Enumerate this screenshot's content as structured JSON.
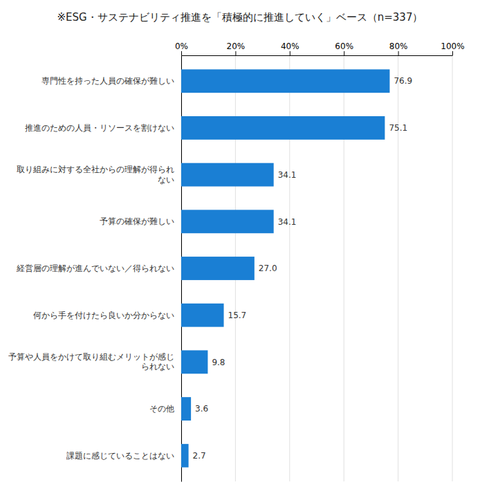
{
  "chart_data": {
    "type": "bar",
    "orientation": "horizontal",
    "title": "※ESG・サステナビリティ推進を「積極的に推進していく」ベース（n=337）",
    "categories": [
      "専門性を持った人員の確保が難しい",
      "推進のための人員・リソースを割けない",
      "取り組みに対する全社からの理解が得られ\nない",
      "予算の確保が難しい",
      "経営層の理解が進んでいない／得られない",
      "何から手を付けたら良いか分からない",
      "予算や人員をかけて取り組むメリットが感じ\nられない",
      "その他",
      "課題に感じていることはない"
    ],
    "values": [
      76.9,
      75.1,
      34.1,
      34.1,
      27.0,
      15.7,
      9.8,
      3.6,
      2.7
    ],
    "value_labels": [
      "76.9",
      "75.1",
      "34.1",
      "34.1",
      "27.0",
      "15.7",
      "9.8",
      "3.6",
      "2.7"
    ],
    "color": "#1a7fd4",
    "xlim": [
      0,
      100
    ],
    "xticks": [
      {
        "value": 0,
        "label": "0%"
      },
      {
        "value": 20,
        "label": "20%"
      },
      {
        "value": 40,
        "label": "40%"
      },
      {
        "value": 60,
        "label": "60%"
      },
      {
        "value": 80,
        "label": "80%"
      },
      {
        "value": 100,
        "label": "100%"
      }
    ],
    "grid": true,
    "data_labels": true
  }
}
